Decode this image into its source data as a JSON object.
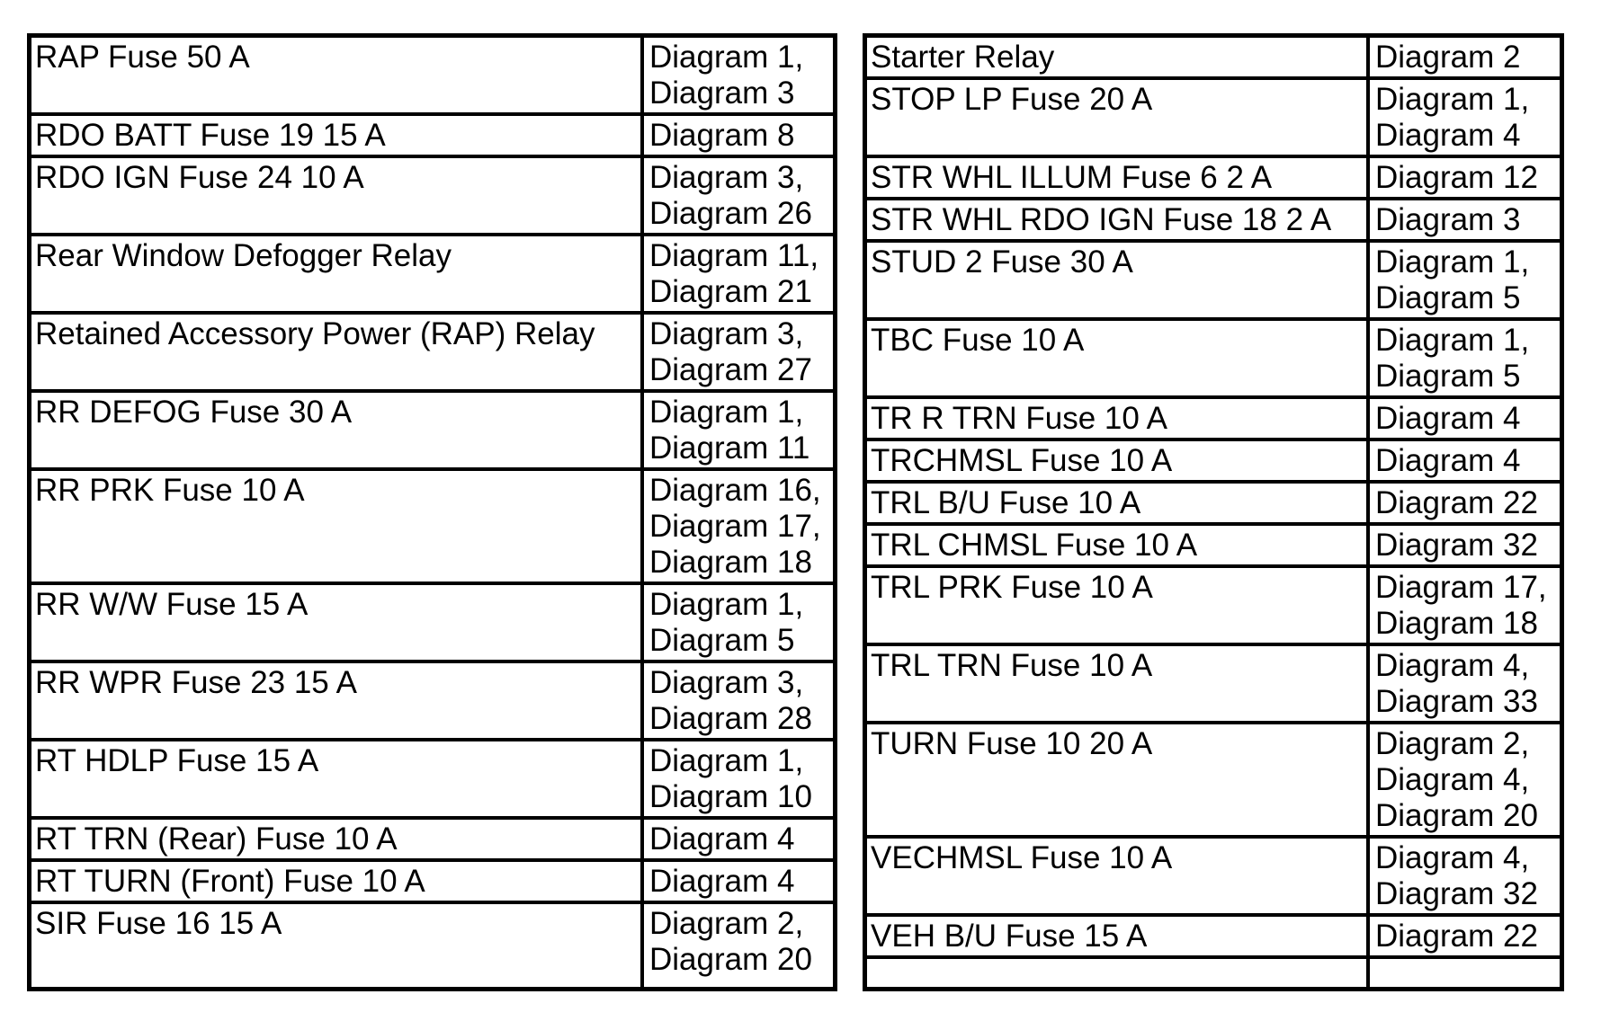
{
  "document": {
    "background_color": "#ffffff",
    "text_color": "#000000",
    "border_color": "#000000"
  },
  "fuse_index": {
    "left_table": {
      "rows": [
        {
          "name": "RAP Fuse 50 A",
          "diagrams": [
            "Diagram 1,",
            "Diagram 3"
          ]
        },
        {
          "name": "RDO BATT Fuse 19 15 A",
          "diagrams": [
            "Diagram 8"
          ]
        },
        {
          "name": "RDO IGN Fuse 24 10 A",
          "diagrams": [
            "Diagram 3,",
            "Diagram 26"
          ]
        },
        {
          "name": "Rear Window Defogger Relay",
          "diagrams": [
            "Diagram 11,",
            "Diagram 21"
          ]
        },
        {
          "name": "Retained Accessory Power (RAP) Relay",
          "diagrams": [
            "Diagram 3,",
            "Diagram 27"
          ]
        },
        {
          "name": "RR DEFOG Fuse 30 A",
          "diagrams": [
            "Diagram 1,",
            "Diagram 11"
          ]
        },
        {
          "name": "RR PRK Fuse 10 A",
          "diagrams": [
            "Diagram 16,",
            "Diagram 17,",
            "Diagram 18"
          ]
        },
        {
          "name": "RR W/W Fuse 15 A",
          "diagrams": [
            "Diagram 1,",
            "Diagram 5"
          ]
        },
        {
          "name": "RR WPR Fuse 23 15 A",
          "diagrams": [
            "Diagram 3,",
            "Diagram 28"
          ]
        },
        {
          "name": "RT HDLP Fuse 15 A",
          "diagrams": [
            "Diagram 1,",
            "Diagram 10"
          ]
        },
        {
          "name": "RT TRN (Rear) Fuse 10 A",
          "diagrams": [
            "Diagram 4"
          ]
        },
        {
          "name": "RT TURN (Front) Fuse 10 A",
          "diagrams": [
            "Diagram 4"
          ]
        },
        {
          "name": "SIR Fuse 16 15 A",
          "diagrams": [
            "Diagram 2,",
            "Diagram 20"
          ]
        }
      ]
    },
    "right_table": {
      "rows": [
        {
          "name": "Starter Relay",
          "diagrams": [
            "Diagram 2"
          ]
        },
        {
          "name": "STOP LP Fuse 20 A",
          "diagrams": [
            "Diagram 1,",
            "Diagram 4"
          ]
        },
        {
          "name": "STR WHL ILLUM Fuse 6 2 A",
          "diagrams": [
            "Diagram 12"
          ]
        },
        {
          "name": "STR WHL RDO IGN Fuse 18 2 A",
          "diagrams": [
            "Diagram 3"
          ]
        },
        {
          "name": "STUD 2 Fuse 30 A",
          "diagrams": [
            "Diagram 1,",
            "Diagram 5"
          ]
        },
        {
          "name": "TBC Fuse 10 A",
          "diagrams": [
            "Diagram 1,",
            "Diagram 5"
          ]
        },
        {
          "name": "TR R TRN Fuse 10 A",
          "diagrams": [
            "Diagram 4"
          ]
        },
        {
          "name": "TRCHMSL Fuse 10 A",
          "diagrams": [
            "Diagram 4"
          ]
        },
        {
          "name": "TRL B/U Fuse 10 A",
          "diagrams": [
            "Diagram 22"
          ]
        },
        {
          "name": "TRL CHMSL Fuse 10 A",
          "diagrams": [
            "Diagram 32"
          ]
        },
        {
          "name": "TRL PRK Fuse 10 A",
          "diagrams": [
            "Diagram 17,",
            "Diagram 18"
          ]
        },
        {
          "name": "TRL TRN Fuse 10 A",
          "diagrams": [
            "Diagram 4,",
            "Diagram 33"
          ]
        },
        {
          "name": "TURN Fuse 10 20 A",
          "diagrams": [
            "Diagram 2,",
            "Diagram 4,",
            "Diagram 20"
          ]
        },
        {
          "name": "VECHMSL Fuse 10 A",
          "diagrams": [
            "Diagram 4,",
            "Diagram 32"
          ]
        },
        {
          "name": "VEH B/U Fuse 15 A",
          "diagrams": [
            "Diagram 22"
          ]
        },
        {
          "name": "",
          "diagrams": []
        }
      ]
    }
  }
}
